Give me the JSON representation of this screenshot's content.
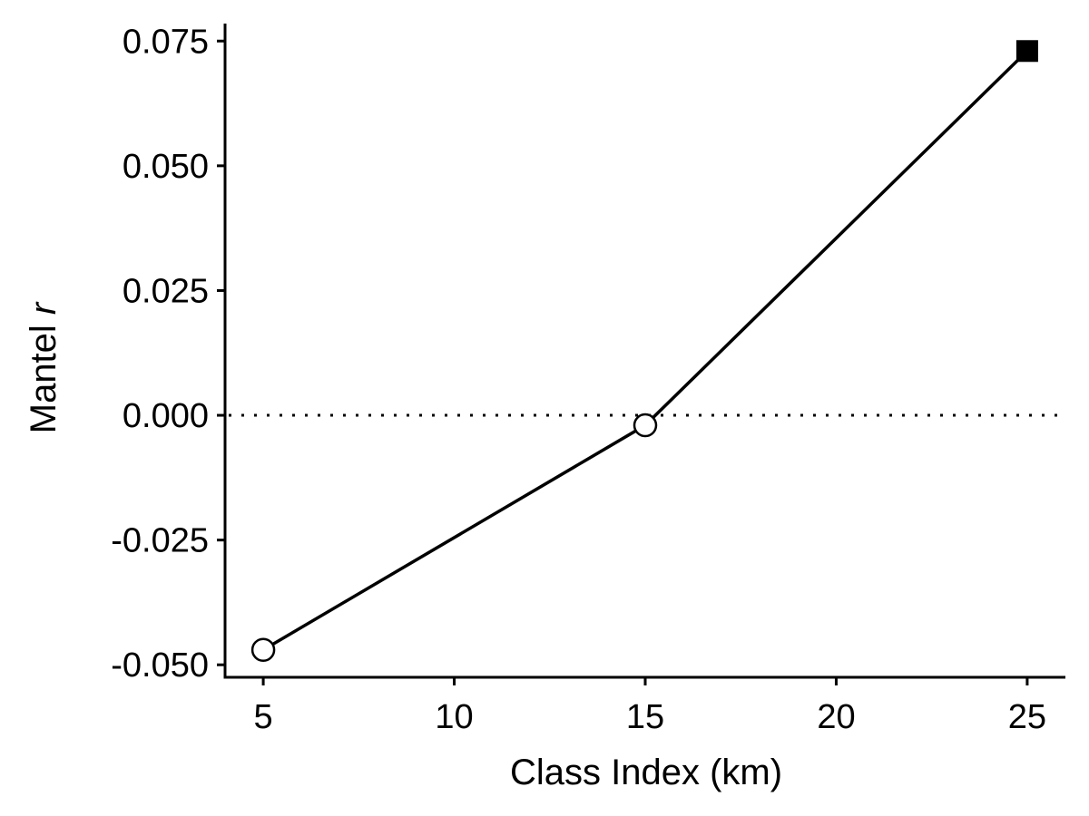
{
  "chart_data": {
    "type": "line",
    "xlabel": "Class Index (km)",
    "ylabel": {
      "prefix": "Mantel ",
      "italic": "r"
    },
    "x": [
      5,
      15,
      25
    ],
    "series": [
      {
        "values": [
          -0.047,
          -0.002,
          0.073
        ],
        "markers": [
          "open-circle",
          "open-circle",
          "filled-square"
        ]
      }
    ],
    "xlim": [
      4,
      26
    ],
    "ylim": [
      -0.0525,
      0.0785
    ],
    "xticks": [
      5,
      10,
      15,
      20,
      25
    ],
    "xtick_labels": [
      "5",
      "10",
      "15",
      "20",
      "25"
    ],
    "yticks": [
      -0.05,
      -0.025,
      0,
      0.025,
      0.05,
      0.075
    ],
    "ytick_labels": [
      "-0.050",
      "-0.025",
      "0.000",
      "0.025",
      "0.050",
      "0.075"
    ],
    "reference_line": {
      "y": 0,
      "style": "dotted"
    },
    "grid": false,
    "legend": "none",
    "colors": {
      "line": "#000000",
      "marker_fill_open": "#ffffff",
      "marker_fill_filled": "#000000"
    }
  }
}
